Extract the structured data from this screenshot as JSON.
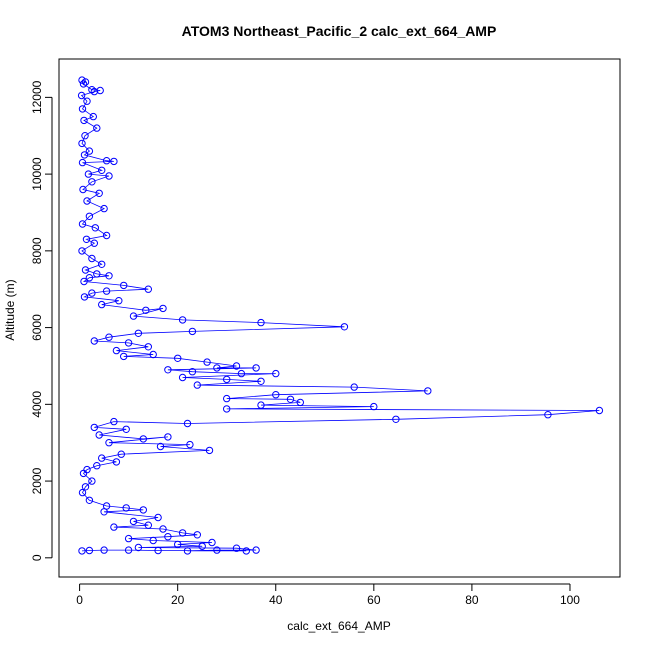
{
  "chart_data": {
    "type": "scatter",
    "title": "ATOM3 Northeast_Pacific_2 calc_ext_664_AMP",
    "xlabel": "calc_ext_664_AMP",
    "ylabel": "Altitude (m)",
    "xlim": [
      -4.2,
      110.2
    ],
    "ylim": [
      -500,
      13000
    ],
    "x_ticks": [
      0,
      20,
      40,
      60,
      80,
      100
    ],
    "y_ticks": [
      0,
      2000,
      4000,
      6000,
      8000,
      10000,
      12000
    ],
    "grid": false,
    "legend": "none",
    "series_color": "#0000ff",
    "marker": "open-circle",
    "connected": true,
    "series": [
      {
        "values": [
          [
            0.5,
            12450
          ],
          [
            1.2,
            12400
          ],
          [
            0.8,
            12350
          ],
          [
            2.5,
            12200
          ],
          [
            4.2,
            12180
          ],
          [
            3.0,
            12150
          ],
          [
            0.4,
            12050
          ],
          [
            1.5,
            11900
          ],
          [
            0.6,
            11700
          ],
          [
            2.8,
            11500
          ],
          [
            0.9,
            11400
          ],
          [
            3.5,
            11200
          ],
          [
            1.1,
            11000
          ],
          [
            0.5,
            10800
          ],
          [
            2.0,
            10600
          ],
          [
            1.0,
            10500
          ],
          [
            5.5,
            10350
          ],
          [
            7.0,
            10330
          ],
          [
            0.6,
            10300
          ],
          [
            4.5,
            10100
          ],
          [
            1.8,
            10000
          ],
          [
            6.0,
            9950
          ],
          [
            2.5,
            9800
          ],
          [
            0.7,
            9600
          ],
          [
            4.0,
            9500
          ],
          [
            1.5,
            9300
          ],
          [
            5.0,
            9100
          ],
          [
            2.0,
            8900
          ],
          [
            0.6,
            8700
          ],
          [
            3.2,
            8600
          ],
          [
            5.5,
            8400
          ],
          [
            1.4,
            8300
          ],
          [
            3.0,
            8200
          ],
          [
            0.5,
            8000
          ],
          [
            2.5,
            7800
          ],
          [
            4.5,
            7650
          ],
          [
            1.2,
            7500
          ],
          [
            3.5,
            7400
          ],
          [
            6.0,
            7350
          ],
          [
            2.0,
            7300
          ],
          [
            0.9,
            7200
          ],
          [
            9.0,
            7100
          ],
          [
            14.0,
            7000
          ],
          [
            5.5,
            6950
          ],
          [
            2.5,
            6900
          ],
          [
            1.0,
            6800
          ],
          [
            8.0,
            6700
          ],
          [
            4.5,
            6600
          ],
          [
            13.5,
            6450
          ],
          [
            17.0,
            6500
          ],
          [
            11.0,
            6300
          ],
          [
            21.0,
            6200
          ],
          [
            37.0,
            6130
          ],
          [
            54.0,
            6020
          ],
          [
            23.0,
            5900
          ],
          [
            12.0,
            5850
          ],
          [
            6.0,
            5750
          ],
          [
            3.0,
            5650
          ],
          [
            10.0,
            5600
          ],
          [
            14.0,
            5500
          ],
          [
            7.5,
            5400
          ],
          [
            15.0,
            5300
          ],
          [
            9.0,
            5250
          ],
          [
            20.0,
            5200
          ],
          [
            26.0,
            5100
          ],
          [
            32.0,
            5000
          ],
          [
            28.0,
            4950
          ],
          [
            36.0,
            4950
          ],
          [
            18.0,
            4900
          ],
          [
            23.0,
            4850
          ],
          [
            33.0,
            4800
          ],
          [
            40.0,
            4800
          ],
          [
            21.0,
            4700
          ],
          [
            30.0,
            4650
          ],
          [
            37.0,
            4600
          ],
          [
            24.0,
            4500
          ],
          [
            56.0,
            4450
          ],
          [
            71.0,
            4350
          ],
          [
            40.0,
            4250
          ],
          [
            30.0,
            4150
          ],
          [
            43.0,
            4130
          ],
          [
            45.0,
            4050
          ],
          [
            37.0,
            3980
          ],
          [
            60.0,
            3940
          ],
          [
            30.0,
            3880
          ],
          [
            106.0,
            3840
          ],
          [
            95.5,
            3730
          ],
          [
            64.5,
            3610
          ],
          [
            22.0,
            3500
          ],
          [
            7.0,
            3550
          ],
          [
            3.0,
            3400
          ],
          [
            9.5,
            3350
          ],
          [
            4.0,
            3200
          ],
          [
            13.0,
            3100
          ],
          [
            18.0,
            3150
          ],
          [
            6.0,
            3000
          ],
          [
            22.5,
            2950
          ],
          [
            16.5,
            2900
          ],
          [
            26.5,
            2800
          ],
          [
            8.5,
            2700
          ],
          [
            4.5,
            2600
          ],
          [
            7.5,
            2500
          ],
          [
            3.5,
            2400
          ],
          [
            1.5,
            2300
          ],
          [
            0.8,
            2200
          ],
          [
            2.5,
            2000
          ],
          [
            1.2,
            1850
          ],
          [
            0.6,
            1700
          ],
          [
            2.0,
            1500
          ],
          [
            5.5,
            1350
          ],
          [
            9.5,
            1300
          ],
          [
            13.0,
            1250
          ],
          [
            5.0,
            1200
          ],
          [
            16.0,
            1050
          ],
          [
            11.0,
            950
          ],
          [
            14.0,
            850
          ],
          [
            7.0,
            800
          ],
          [
            17.0,
            750
          ],
          [
            21.0,
            650
          ],
          [
            24.0,
            600
          ],
          [
            18.0,
            550
          ],
          [
            10.0,
            500
          ],
          [
            15.0,
            450
          ],
          [
            27.0,
            400
          ],
          [
            20.0,
            350
          ],
          [
            25.0,
            300
          ],
          [
            12.0,
            270
          ],
          [
            32.0,
            250
          ],
          [
            36.0,
            200
          ],
          [
            28.0,
            200
          ],
          [
            22.0,
            180
          ],
          [
            34.0,
            180
          ],
          [
            16.0,
            190
          ],
          [
            10.0,
            200
          ],
          [
            5.0,
            200
          ],
          [
            2.0,
            190
          ],
          [
            0.5,
            180
          ]
        ]
      }
    ]
  }
}
